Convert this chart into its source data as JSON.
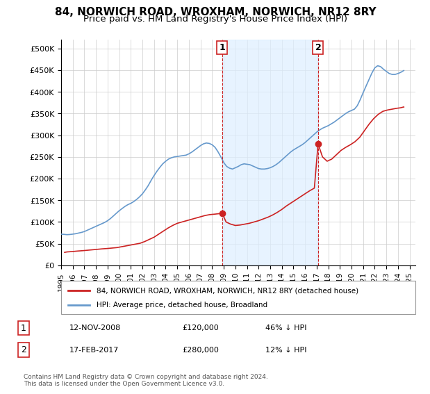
{
  "title": "84, NORWICH ROAD, WROXHAM, NORWICH, NR12 8RY",
  "subtitle": "Price paid vs. HM Land Registry's House Price Index (HPI)",
  "title_fontsize": 11,
  "subtitle_fontsize": 9.5,
  "ylabel_ticks": [
    "£0",
    "£50K",
    "£100K",
    "£150K",
    "£200K",
    "£250K",
    "£300K",
    "£350K",
    "£400K",
    "£450K",
    "£500K"
  ],
  "ytick_values": [
    0,
    50000,
    100000,
    150000,
    200000,
    250000,
    300000,
    350000,
    400000,
    450000,
    500000
  ],
  "ylim": [
    0,
    520000
  ],
  "xlim_start": 1995.0,
  "xlim_end": 2025.5,
  "xtick_years": [
    1995,
    1996,
    1997,
    1998,
    1999,
    2000,
    2001,
    2002,
    2003,
    2004,
    2005,
    2006,
    2007,
    2008,
    2009,
    2010,
    2011,
    2012,
    2013,
    2014,
    2015,
    2016,
    2017,
    2018,
    2019,
    2020,
    2021,
    2022,
    2023,
    2024,
    2025
  ],
  "hpi_color": "#6699cc",
  "price_color": "#cc2222",
  "annotation_bg": "#ddeeff",
  "annotation_border": "#cc2222",
  "marker1_x": 2008.87,
  "marker1_y": 120000,
  "marker2_x": 2017.12,
  "marker2_y": 280000,
  "vline1_x": 2008.87,
  "vline2_x": 2017.12,
  "legend_label_red": "84, NORWICH ROAD, WROXHAM, NORWICH, NR12 8RY (detached house)",
  "legend_label_blue": "HPI: Average price, detached house, Broadland",
  "table_row1": [
    "1",
    "12-NOV-2008",
    "£120,000",
    "46% ↓ HPI"
  ],
  "table_row2": [
    "2",
    "17-FEB-2017",
    "£280,000",
    "12% ↓ HPI"
  ],
  "footnote": "Contains HM Land Registry data © Crown copyright and database right 2024.\nThis data is licensed under the Open Government Licence v3.0.",
  "hpi_data_x": [
    1995.0,
    1995.25,
    1995.5,
    1995.75,
    1996.0,
    1996.25,
    1996.5,
    1996.75,
    1997.0,
    1997.25,
    1997.5,
    1997.75,
    1998.0,
    1998.25,
    1998.5,
    1998.75,
    1999.0,
    1999.25,
    1999.5,
    1999.75,
    2000.0,
    2000.25,
    2000.5,
    2000.75,
    2001.0,
    2001.25,
    2001.5,
    2001.75,
    2002.0,
    2002.25,
    2002.5,
    2002.75,
    2003.0,
    2003.25,
    2003.5,
    2003.75,
    2004.0,
    2004.25,
    2004.5,
    2004.75,
    2005.0,
    2005.25,
    2005.5,
    2005.75,
    2006.0,
    2006.25,
    2006.5,
    2006.75,
    2007.0,
    2007.25,
    2007.5,
    2007.75,
    2008.0,
    2008.25,
    2008.5,
    2008.75,
    2009.0,
    2009.25,
    2009.5,
    2009.75,
    2010.0,
    2010.25,
    2010.5,
    2010.75,
    2011.0,
    2011.25,
    2011.5,
    2011.75,
    2012.0,
    2012.25,
    2012.5,
    2012.75,
    2013.0,
    2013.25,
    2013.5,
    2013.75,
    2014.0,
    2014.25,
    2014.5,
    2014.75,
    2015.0,
    2015.25,
    2015.5,
    2015.75,
    2016.0,
    2016.25,
    2016.5,
    2016.75,
    2017.0,
    2017.25,
    2017.5,
    2017.75,
    2018.0,
    2018.25,
    2018.5,
    2018.75,
    2019.0,
    2019.25,
    2019.5,
    2019.75,
    2020.0,
    2020.25,
    2020.5,
    2020.75,
    2021.0,
    2021.25,
    2021.5,
    2021.75,
    2022.0,
    2022.25,
    2022.5,
    2022.75,
    2023.0,
    2023.25,
    2023.5,
    2023.75,
    2024.0,
    2024.25,
    2024.5
  ],
  "hpi_data_y": [
    72000,
    71500,
    70800,
    71200,
    72000,
    73000,
    74500,
    76000,
    78000,
    81000,
    84000,
    87000,
    90000,
    93000,
    96000,
    99000,
    103000,
    108000,
    114000,
    120000,
    126000,
    131000,
    136000,
    140000,
    143000,
    147000,
    152000,
    158000,
    165000,
    174000,
    184000,
    196000,
    207000,
    217000,
    226000,
    234000,
    240000,
    245000,
    248000,
    250000,
    251000,
    252000,
    253000,
    254000,
    257000,
    261000,
    266000,
    271000,
    276000,
    280000,
    282000,
    281000,
    278000,
    272000,
    262000,
    250000,
    237000,
    228000,
    224000,
    222000,
    225000,
    228000,
    232000,
    234000,
    233000,
    232000,
    229000,
    226000,
    223000,
    222000,
    222000,
    223000,
    225000,
    228000,
    232000,
    237000,
    243000,
    249000,
    255000,
    261000,
    266000,
    270000,
    274000,
    278000,
    283000,
    289000,
    295000,
    301000,
    307000,
    312000,
    316000,
    319000,
    322000,
    326000,
    330000,
    335000,
    340000,
    345000,
    350000,
    354000,
    357000,
    360000,
    368000,
    382000,
    398000,
    413000,
    428000,
    443000,
    455000,
    460000,
    458000,
    452000,
    447000,
    442000,
    440000,
    440000,
    442000,
    445000,
    449000
  ],
  "price_data_x": [
    1995.3,
    1995.5,
    1996.0,
    1996.4,
    1996.9,
    1997.3,
    1997.7,
    1998.1,
    1998.5,
    1999.0,
    1999.4,
    1999.8,
    2000.2,
    2000.6,
    2001.0,
    2001.4,
    2001.8,
    2002.2,
    2002.6,
    2003.0,
    2003.4,
    2003.8,
    2004.2,
    2004.6,
    2005.0,
    2005.4,
    2005.8,
    2006.2,
    2006.6,
    2007.0,
    2007.4,
    2007.8,
    2008.2,
    2008.87,
    2009.2,
    2009.6,
    2010.0,
    2010.4,
    2010.8,
    2011.2,
    2011.6,
    2012.0,
    2012.4,
    2012.8,
    2013.2,
    2013.6,
    2014.0,
    2014.4,
    2014.8,
    2015.2,
    2015.6,
    2016.0,
    2016.4,
    2016.8,
    2017.12,
    2017.5,
    2017.9,
    2018.3,
    2018.7,
    2019.1,
    2019.5,
    2019.9,
    2020.3,
    2020.7,
    2021.1,
    2021.5,
    2021.9,
    2022.3,
    2022.7,
    2023.1,
    2023.5,
    2023.9,
    2024.2,
    2024.5
  ],
  "price_data_y": [
    30000,
    31000,
    32000,
    33000,
    34000,
    35000,
    36000,
    37000,
    38000,
    39000,
    40000,
    41000,
    43000,
    45000,
    47000,
    49000,
    51000,
    55000,
    60000,
    65000,
    72000,
    79000,
    86000,
    92000,
    97000,
    100000,
    103000,
    106000,
    109000,
    112000,
    115000,
    117000,
    118000,
    120000,
    100000,
    95000,
    92000,
    93000,
    95000,
    97000,
    100000,
    103000,
    107000,
    111000,
    116000,
    122000,
    129000,
    137000,
    144000,
    151000,
    158000,
    165000,
    172000,
    178000,
    280000,
    250000,
    240000,
    245000,
    255000,
    265000,
    272000,
    278000,
    285000,
    295000,
    310000,
    325000,
    338000,
    348000,
    355000,
    358000,
    360000,
    362000,
    363000,
    365000
  ]
}
